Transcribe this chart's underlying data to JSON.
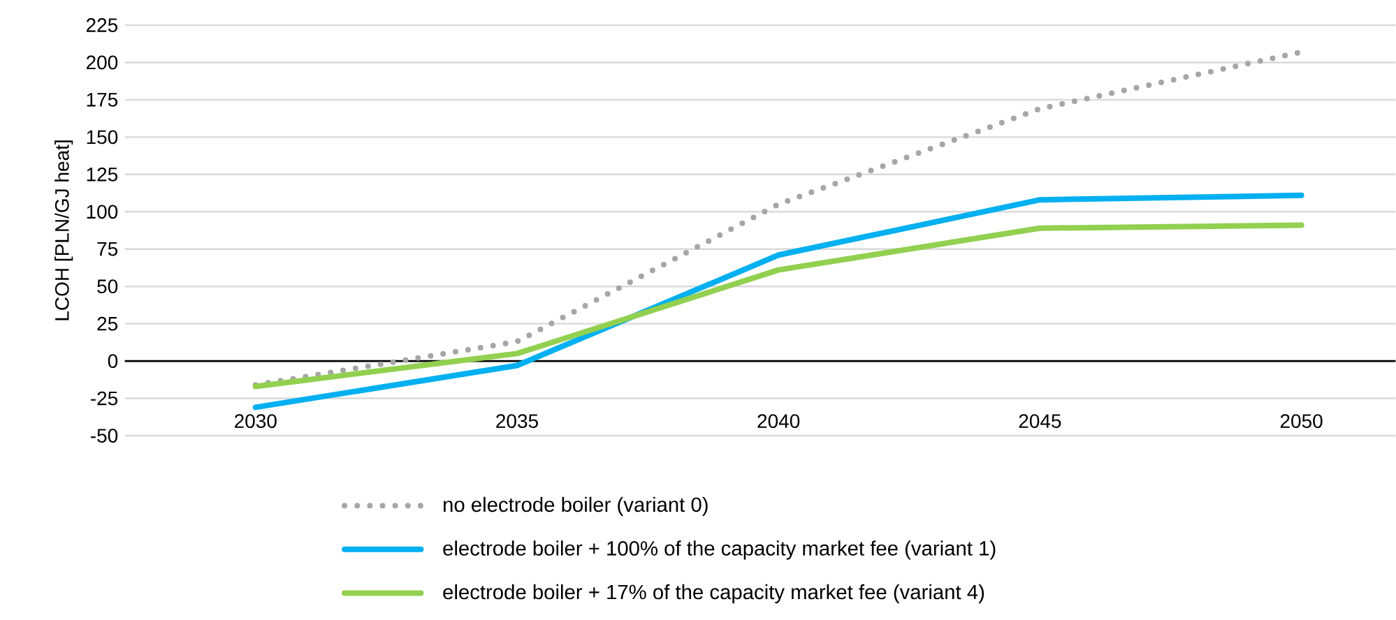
{
  "chart_data": {
    "type": "line",
    "ylabel": "LCOH [PLN/GJ heat]",
    "categories": [
      "2030",
      "2035",
      "2040",
      "2045",
      "2050"
    ],
    "series": [
      {
        "name": "no electrode boiler (variant 0)",
        "color": "#a6a6a6",
        "line_style": "dotted",
        "values": [
          -16,
          13,
          105,
          169,
          207
        ]
      },
      {
        "name": "electrode boiler + 100% of the capacity market fee (variant 1)",
        "color": "#00b0f0",
        "line_style": "solid",
        "values": [
          -31,
          -3,
          71,
          108,
          111
        ]
      },
      {
        "name": "electrode boiler +  17% of the capacity market fee (variant 4)",
        "color": "#92d050",
        "line_style": "solid",
        "values": [
          -17,
          5,
          61,
          89,
          91
        ]
      }
    ],
    "ylim": [
      -50,
      225
    ],
    "yticks": [
      -50,
      -25,
      0,
      25,
      50,
      75,
      100,
      125,
      150,
      175,
      200,
      225
    ],
    "grid": "y",
    "legend": "bottom"
  }
}
